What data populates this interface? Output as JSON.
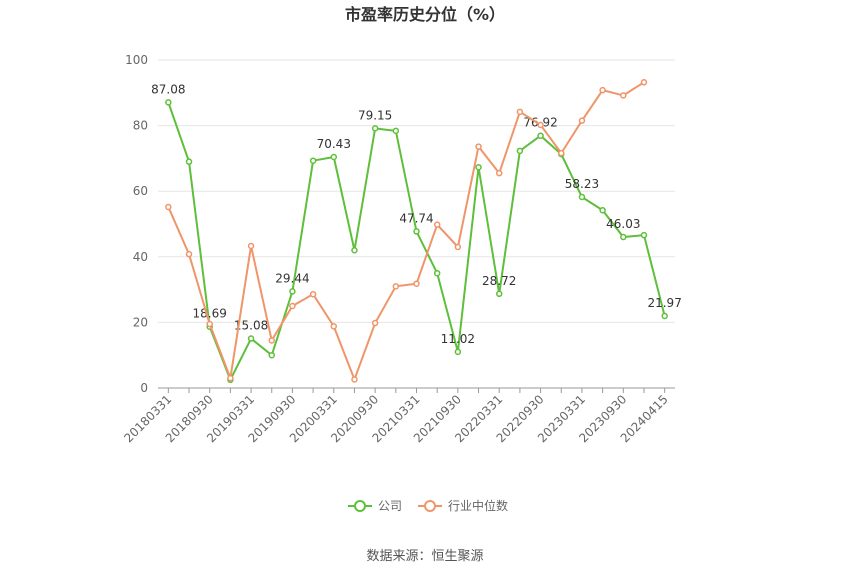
{
  "chart_data": {
    "type": "line",
    "title": "市盈率历史分位（%）",
    "categories": [
      "20180331",
      null,
      "20180930",
      null,
      "20190331",
      null,
      "20190930",
      null,
      "20200331",
      null,
      "20200930",
      null,
      "20210331",
      null,
      "20210930",
      null,
      "20220331",
      null,
      "20220930",
      null,
      "20230331",
      null,
      "20230930",
      null,
      "20240415"
    ],
    "series": [
      {
        "name": "公司",
        "color": "#5dbf3a",
        "values": [
          87.08,
          69,
          18.69,
          2.5,
          15.08,
          10,
          29.44,
          69.3,
          70.43,
          42,
          79.15,
          78.4,
          47.74,
          35,
          11.02,
          67.3,
          28.72,
          72.3,
          76.92,
          71.3,
          58.23,
          54.2,
          46.03,
          46.6,
          21.97
        ]
      },
      {
        "name": "行业中位数",
        "color": "#f0956a",
        "values": [
          55.2,
          40.8,
          19.5,
          3,
          43.3,
          14.5,
          25,
          28.6,
          18.8,
          2.6,
          19.8,
          31,
          31.8,
          49.8,
          43,
          73.6,
          65.5,
          84.2,
          80.2,
          71.6,
          81.5,
          90.8,
          89.2,
          93.2,
          null
        ]
      }
    ],
    "ylim": [
      0,
      100
    ],
    "yticks": [
      0,
      20,
      40,
      60,
      80,
      100
    ],
    "grid": true,
    "source": "数据来源：恒生聚源"
  }
}
